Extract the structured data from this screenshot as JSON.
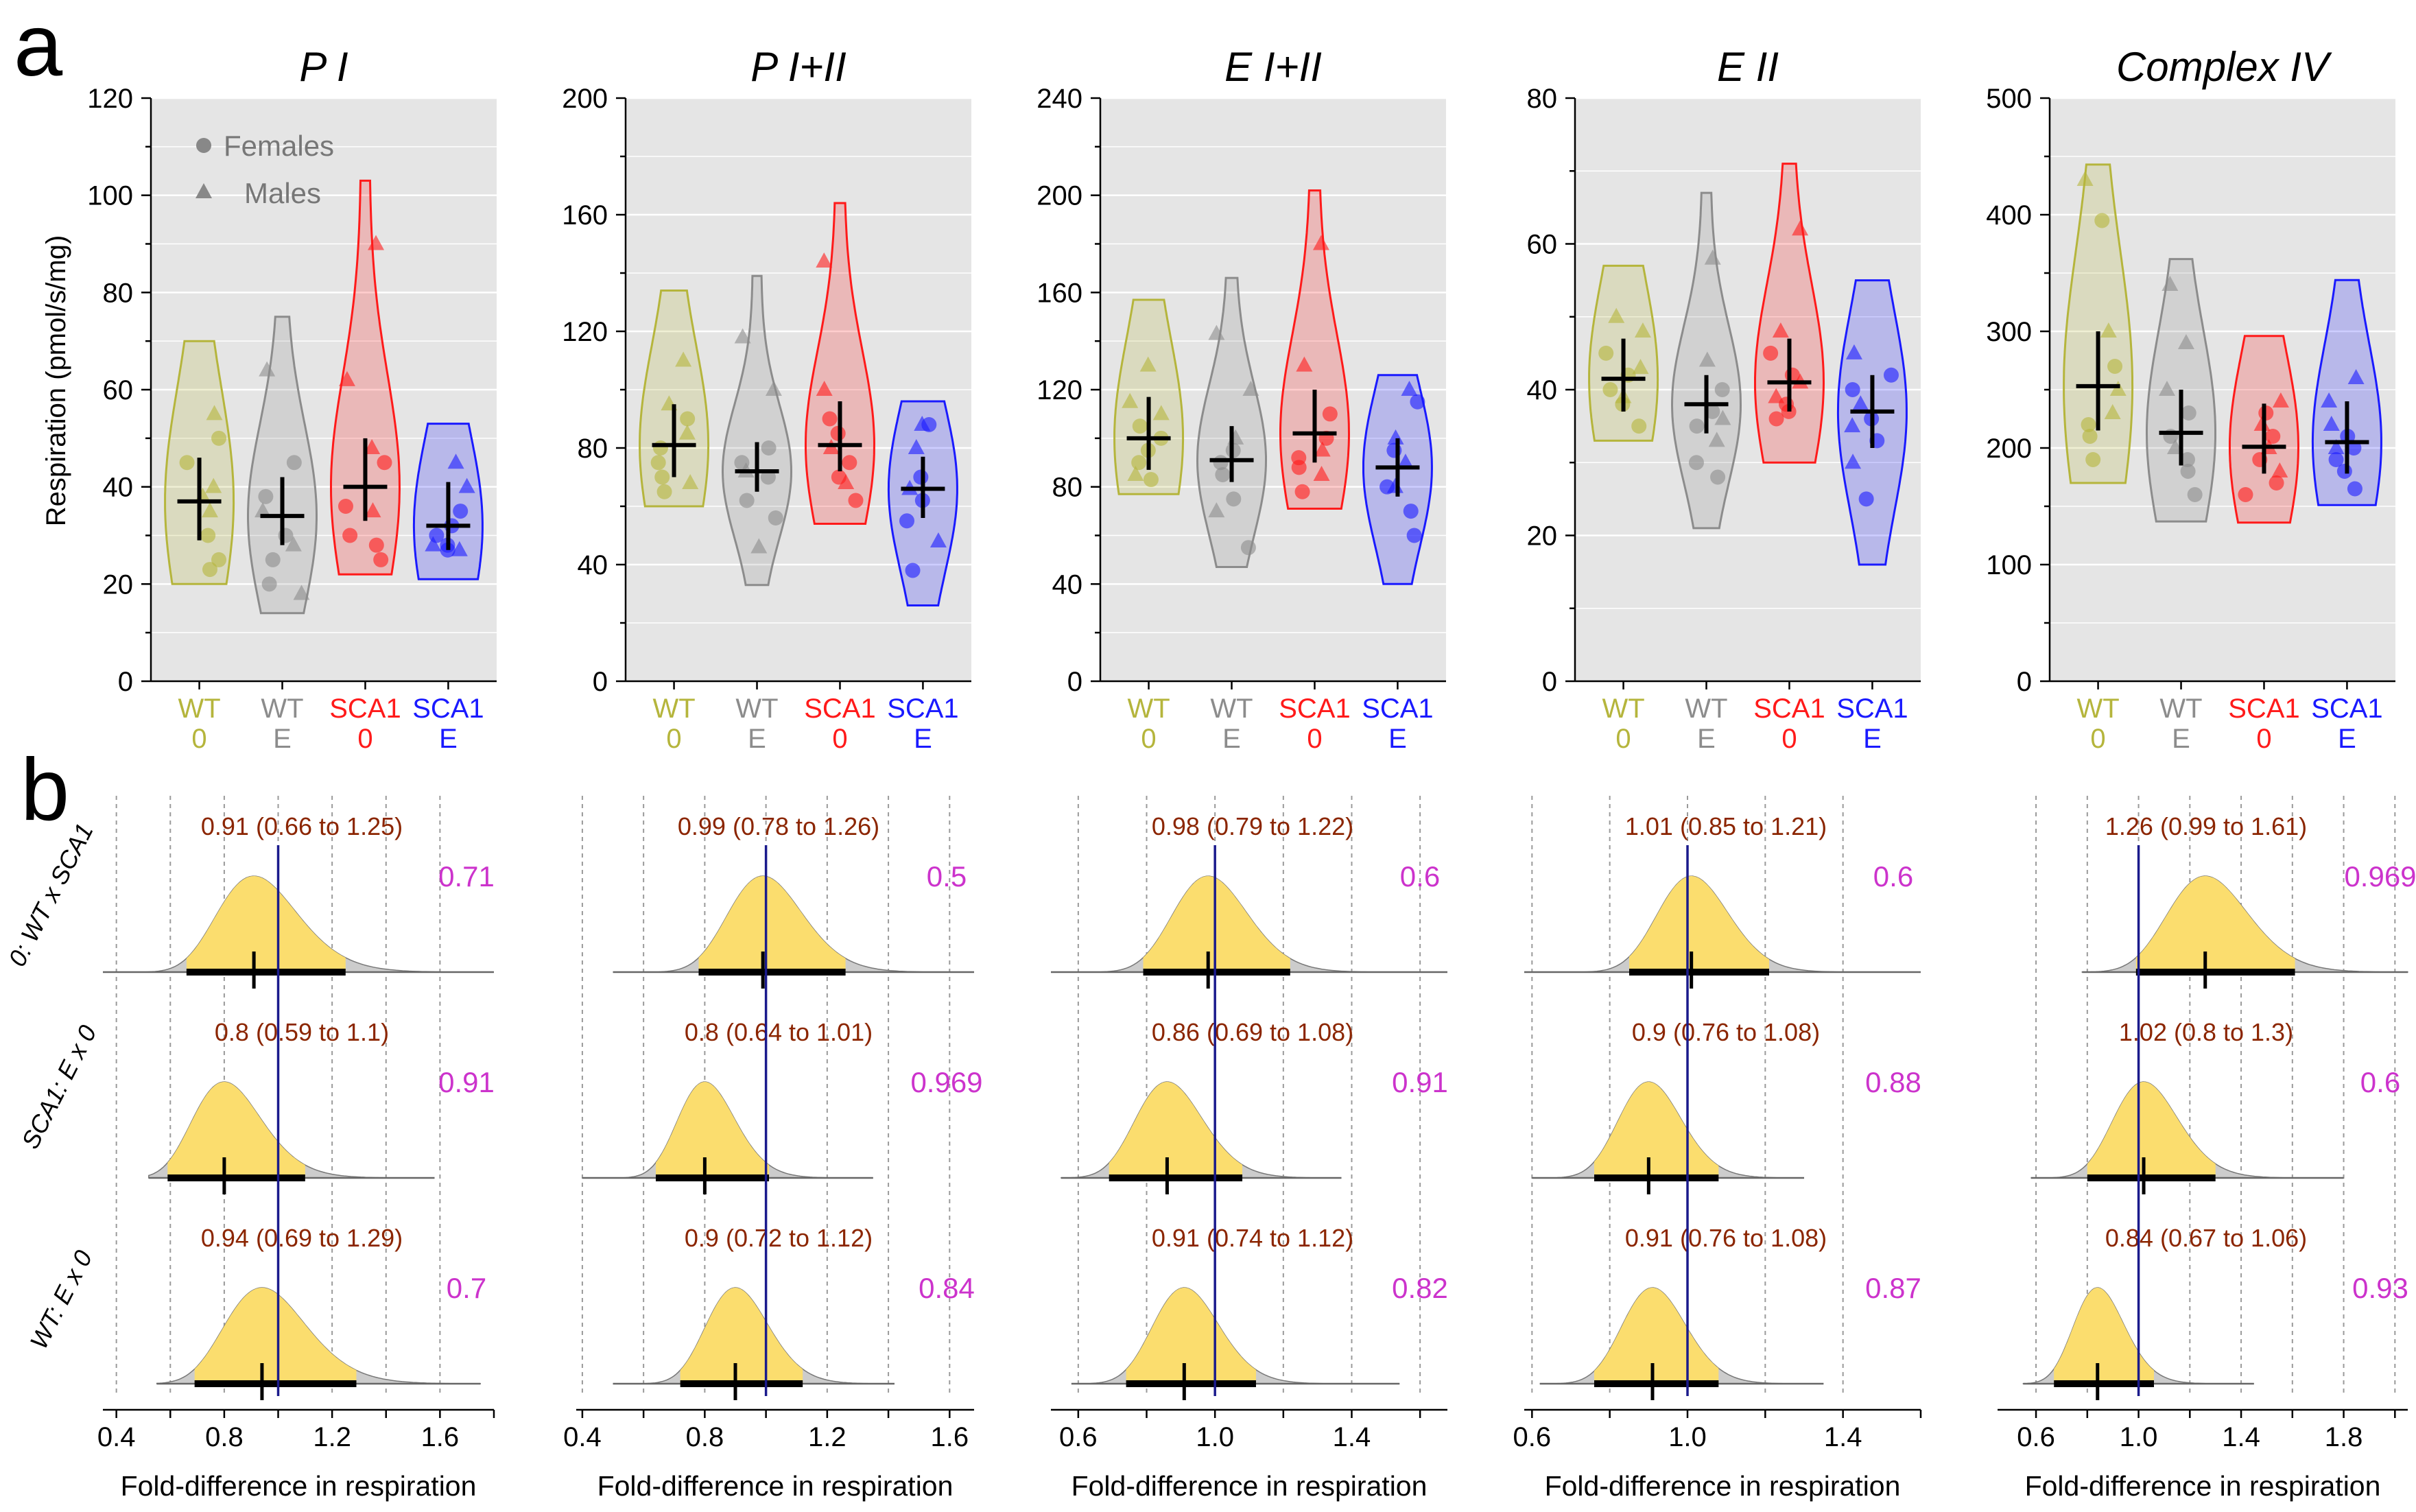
{
  "panel_labels": {
    "a": "a",
    "b": "b"
  },
  "top_ylabel": "Respiration (pmol/s/mg)",
  "bottom_xlabel": "Fold-difference in respiration",
  "groups": [
    {
      "line1": "WT",
      "line2": "0",
      "color": "#b5b53c"
    },
    {
      "line1": "WT",
      "line2": "E",
      "color": "#8c8c8c"
    },
    {
      "line1": "SCA1",
      "line2": "0",
      "color": "#ff1a1a"
    },
    {
      "line1": "SCA1",
      "line2": "E",
      "color": "#1a1aff"
    }
  ],
  "legend": {
    "females": "Females",
    "males": "Males"
  },
  "comparisons": [
    "0: WT x SCA1",
    "SCA1: E x 0",
    "WT: E x 0"
  ],
  "colors": {
    "plot_bg": "#e5e5e5",
    "density_fill": "#fbdd6e",
    "density_tail": "#cccccc",
    "ref_line": "#1a1a8c",
    "ci_text": "#8b2500",
    "prob_text": "#cc33cc"
  },
  "chart_data": [
    {
      "type": "violin",
      "title": "P I",
      "ylim": [
        0,
        120
      ],
      "yticks": [
        0,
        20,
        40,
        60,
        80,
        100,
        120
      ],
      "groups": [
        {
          "name": "WT 0",
          "mean": 37,
          "ci": [
            29,
            46
          ],
          "range": [
            20,
            70
          ],
          "females": [
            30,
            25,
            45,
            50,
            23
          ],
          "males": [
            35,
            40,
            55,
            38
          ]
        },
        {
          "name": "WT E",
          "mean": 34,
          "ci": [
            28,
            42
          ],
          "range": [
            14,
            75
          ],
          "females": [
            30,
            20,
            45,
            38,
            25
          ],
          "males": [
            18,
            35,
            64,
            28
          ]
        },
        {
          "name": "SCA1 0",
          "mean": 40,
          "ci": [
            33,
            50
          ],
          "range": [
            22,
            103
          ],
          "females": [
            25,
            45,
            36,
            30,
            28
          ],
          "males": [
            90,
            62,
            48,
            35
          ]
        },
        {
          "name": "SCA1 E",
          "mean": 32,
          "ci": [
            27,
            41
          ],
          "range": [
            21,
            53
          ],
          "females": [
            27,
            35,
            30,
            28,
            32
          ],
          "males": [
            45,
            40,
            28,
            27
          ]
        }
      ]
    },
    {
      "type": "violin",
      "title": "P I+II",
      "ylim": [
        0,
        200
      ],
      "yticks": [
        0,
        40,
        80,
        120,
        160,
        200
      ],
      "groups": [
        {
          "name": "WT 0",
          "mean": 81,
          "ci": [
            70,
            95
          ],
          "range": [
            60,
            134
          ],
          "females": [
            65,
            75,
            90,
            80,
            70
          ],
          "males": [
            110,
            95,
            68,
            85
          ]
        },
        {
          "name": "WT E",
          "mean": 72,
          "ci": [
            65,
            82
          ],
          "range": [
            33,
            139
          ],
          "females": [
            56,
            75,
            70,
            80,
            62
          ],
          "males": [
            118,
            100,
            46,
            72
          ]
        },
        {
          "name": "SCA1 0",
          "mean": 81,
          "ci": [
            72,
            96
          ],
          "range": [
            54,
            164
          ],
          "females": [
            62,
            75,
            85,
            70,
            90
          ],
          "males": [
            144,
            100,
            80,
            68
          ]
        },
        {
          "name": "SCA1 E",
          "mean": 66,
          "ci": [
            56,
            77
          ],
          "range": [
            26,
            96
          ],
          "females": [
            38,
            55,
            70,
            62,
            88
          ],
          "males": [
            48,
            80,
            66,
            88
          ]
        }
      ]
    },
    {
      "type": "violin",
      "title": "E I+II",
      "ylim": [
        0,
        240
      ],
      "yticks": [
        0,
        40,
        80,
        120,
        160,
        200,
        240
      ],
      "groups": [
        {
          "name": "WT 0",
          "mean": 100,
          "ci": [
            87,
            117
          ],
          "range": [
            77,
            157
          ],
          "females": [
            83,
            90,
            105,
            95,
            100
          ],
          "males": [
            130,
            115,
            85,
            110
          ]
        },
        {
          "name": "WT E",
          "mean": 91,
          "ci": [
            82,
            105
          ],
          "range": [
            47,
            166
          ],
          "females": [
            55,
            75,
            90,
            85,
            95
          ],
          "males": [
            143,
            120,
            70,
            100
          ]
        },
        {
          "name": "SCA1 0",
          "mean": 102,
          "ci": [
            90,
            120
          ],
          "range": [
            71,
            202
          ],
          "females": [
            78,
            100,
            110,
            92,
            88
          ],
          "males": [
            180,
            130,
            95,
            85
          ]
        },
        {
          "name": "SCA1 E",
          "mean": 88,
          "ci": [
            76,
            100
          ],
          "range": [
            40,
            126
          ],
          "females": [
            60,
            80,
            95,
            70,
            115
          ],
          "males": [
            120,
            100,
            90,
            80
          ]
        }
      ]
    },
    {
      "type": "violin",
      "title": "E II",
      "ylim": [
        0,
        80
      ],
      "yticks": [
        0,
        20,
        40,
        60,
        80
      ],
      "groups": [
        {
          "name": "WT 0",
          "mean": 41.5,
          "ci": [
            37,
            47
          ],
          "range": [
            33,
            57
          ],
          "females": [
            38,
            42,
            35,
            45,
            40
          ],
          "males": [
            50,
            48,
            43,
            39
          ]
        },
        {
          "name": "WT E",
          "mean": 38,
          "ci": [
            34,
            42
          ],
          "range": [
            21,
            67
          ],
          "females": [
            30,
            35,
            40,
            28,
            37
          ],
          "males": [
            58,
            44,
            36,
            33
          ]
        },
        {
          "name": "SCA1 0",
          "mean": 41,
          "ci": [
            37,
            47
          ],
          "range": [
            30,
            71
          ],
          "females": [
            36,
            38,
            42,
            37,
            45
          ],
          "males": [
            62,
            48,
            41,
            39
          ]
        },
        {
          "name": "SCA1 E",
          "mean": 37,
          "ci": [
            32,
            42
          ],
          "range": [
            16,
            55
          ],
          "females": [
            25,
            33,
            40,
            36,
            42
          ],
          "males": [
            45,
            38,
            35,
            30
          ]
        }
      ]
    },
    {
      "type": "violin",
      "title": "Complex IV",
      "ylim": [
        0,
        500
      ],
      "yticks": [
        0,
        100,
        200,
        300,
        400,
        500
      ],
      "groups": [
        {
          "name": "WT 0",
          "mean": 253,
          "ci": [
            215,
            300
          ],
          "range": [
            170,
            443
          ],
          "females": [
            395,
            270,
            210,
            190,
            220
          ],
          "males": [
            430,
            300,
            230,
            250
          ]
        },
        {
          "name": "WT E",
          "mean": 213,
          "ci": [
            185,
            250
          ],
          "range": [
            137,
            362
          ],
          "females": [
            160,
            190,
            210,
            230,
            180
          ],
          "males": [
            340,
            290,
            200,
            250
          ]
        },
        {
          "name": "SCA1 0",
          "mean": 201,
          "ci": [
            178,
            238
          ],
          "range": [
            136,
            296
          ],
          "females": [
            170,
            190,
            210,
            160,
            230
          ],
          "males": [
            240,
            220,
            200,
            180
          ]
        },
        {
          "name": "SCA1 E",
          "mean": 205,
          "ci": [
            178,
            240
          ],
          "range": [
            151,
            344
          ],
          "females": [
            165,
            180,
            200,
            210,
            190
          ],
          "males": [
            260,
            240,
            220,
            200
          ]
        }
      ]
    },
    {
      "type": "density",
      "panel": "P I",
      "xlim": [
        0.35,
        1.8
      ],
      "xticks": [
        0.4,
        0.8,
        1.2,
        1.6
      ],
      "xgrid": [
        0.4,
        0.6,
        0.8,
        1.0,
        1.2,
        1.4,
        1.6
      ],
      "rows": [
        {
          "comparison": "0: WT x SCA1",
          "estimate": 0.91,
          "ci": [
            0.66,
            1.25
          ],
          "label": "0.91 (0.66 to 1.25)",
          "prob": "0.71",
          "range": [
            0.35,
            1.8
          ]
        },
        {
          "comparison": "SCA1: E x 0",
          "estimate": 0.8,
          "ci": [
            0.59,
            1.1
          ],
          "label": "0.8 (0.59 to 1.1)",
          "prob": "0.91",
          "range": [
            0.52,
            1.58
          ]
        },
        {
          "comparison": "WT: E x 0",
          "estimate": 0.94,
          "ci": [
            0.69,
            1.29
          ],
          "label": "0.94 (0.69 to 1.29)",
          "prob": "0.7",
          "range": [
            0.55,
            1.75
          ]
        }
      ]
    },
    {
      "type": "density",
      "panel": "P I+II",
      "xlim": [
        0.38,
        1.68
      ],
      "xticks": [
        0.4,
        0.8,
        1.2,
        1.6
      ],
      "xgrid": [
        0.4,
        0.6,
        0.8,
        1.0,
        1.2,
        1.4,
        1.6
      ],
      "rows": [
        {
          "comparison": "0: WT x SCA1",
          "estimate": 0.99,
          "ci": [
            0.78,
            1.26
          ],
          "label": "0.99 (0.78 to 1.26)",
          "prob": "0.5",
          "range": [
            0.5,
            1.68
          ]
        },
        {
          "comparison": "SCA1: E x 0",
          "estimate": 0.8,
          "ci": [
            0.64,
            1.01
          ],
          "label": "0.8 (0.64 to 1.01)",
          "prob": "0.969",
          "range": [
            0.4,
            1.35
          ]
        },
        {
          "comparison": "WT: E x 0",
          "estimate": 0.9,
          "ci": [
            0.72,
            1.12
          ],
          "label": "0.9 (0.72 to 1.12)",
          "prob": "0.84",
          "range": [
            0.5,
            1.42
          ]
        }
      ]
    },
    {
      "type": "density",
      "panel": "E I+II",
      "xlim": [
        0.52,
        1.68
      ],
      "xticks": [
        0.6,
        1.0,
        1.4
      ],
      "xgrid": [
        0.6,
        0.8,
        1.0,
        1.2,
        1.4,
        1.6
      ],
      "rows": [
        {
          "comparison": "0: WT x SCA1",
          "estimate": 0.98,
          "ci": [
            0.79,
            1.22
          ],
          "label": "0.98 (0.79 to 1.22)",
          "prob": "0.6",
          "range": [
            0.52,
            1.68
          ]
        },
        {
          "comparison": "SCA1: E x 0",
          "estimate": 0.86,
          "ci": [
            0.69,
            1.08
          ],
          "label": "0.86 (0.69 to 1.08)",
          "prob": "0.91",
          "range": [
            0.55,
            1.37
          ]
        },
        {
          "comparison": "WT: E x 0",
          "estimate": 0.91,
          "ci": [
            0.74,
            1.12
          ],
          "label": "0.91 (0.74 to 1.12)",
          "prob": "0.82",
          "range": [
            0.58,
            1.54
          ]
        }
      ]
    },
    {
      "type": "density",
      "panel": "E II",
      "xlim": [
        0.58,
        1.6
      ],
      "xticks": [
        0.6,
        1.0,
        1.4
      ],
      "xgrid": [
        0.6,
        0.8,
        1.0,
        1.2,
        1.4
      ],
      "rows": [
        {
          "comparison": "0: WT x SCA1",
          "estimate": 1.01,
          "ci": [
            0.85,
            1.21
          ],
          "label": "1.01 (0.85 to 1.21)",
          "prob": "0.6",
          "range": [
            0.58,
            1.6
          ]
        },
        {
          "comparison": "SCA1: E x 0",
          "estimate": 0.9,
          "ci": [
            0.76,
            1.08
          ],
          "label": "0.9 (0.76 to 1.08)",
          "prob": "0.88",
          "range": [
            0.6,
            1.3
          ]
        },
        {
          "comparison": "WT: E x 0",
          "estimate": 0.91,
          "ci": [
            0.76,
            1.08
          ],
          "label": "0.91 (0.76 to 1.08)",
          "prob": "0.87",
          "range": [
            0.62,
            1.35
          ]
        }
      ]
    },
    {
      "type": "density",
      "panel": "Complex IV",
      "xlim": [
        0.45,
        2.05
      ],
      "xticks": [
        0.6,
        1.0,
        1.4,
        1.8
      ],
      "xgrid": [
        0.6,
        0.8,
        1.0,
        1.2,
        1.4,
        1.6,
        1.8,
        2.0
      ],
      "rows": [
        {
          "comparison": "0: WT x SCA1",
          "estimate": 1.26,
          "ci": [
            0.99,
            1.61
          ],
          "label": "1.26 (0.99 to 1.61)",
          "prob": "0.969",
          "range": [
            0.78,
            2.05
          ]
        },
        {
          "comparison": "SCA1: E x 0",
          "estimate": 1.02,
          "ci": [
            0.8,
            1.3
          ],
          "label": "1.02 (0.8 to 1.3)",
          "prob": "0.6",
          "range": [
            0.58,
            1.8
          ]
        },
        {
          "comparison": "WT: E x 0",
          "estimate": 0.84,
          "ci": [
            0.67,
            1.06
          ],
          "label": "0.84 (0.67 to 1.06)",
          "prob": "0.93",
          "range": [
            0.55,
            1.45
          ]
        }
      ]
    }
  ]
}
